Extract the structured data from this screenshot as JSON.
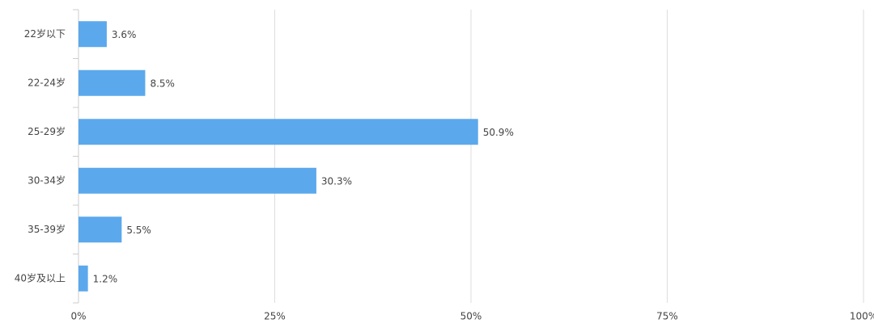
{
  "chart_data": {
    "type": "hbar",
    "categories": [
      "22岁以下",
      "22-24岁",
      "25-29岁",
      "30-34岁",
      "35-39岁",
      "40岁及以上"
    ],
    "values": [
      3.6,
      8.5,
      50.9,
      30.3,
      5.5,
      1.2
    ],
    "value_labels": [
      "3.6%",
      "8.5%",
      "50.9%",
      "30.3%",
      "5.5%",
      "1.2%"
    ],
    "color": "#5ba8ec",
    "xlim": [
      0,
      100
    ],
    "xticks": [
      {
        "value": 0,
        "label": "0%"
      },
      {
        "value": 25,
        "label": "25%"
      },
      {
        "value": 50,
        "label": "50%"
      },
      {
        "value": 75,
        "label": "75%"
      },
      {
        "value": 100,
        "label": "100%"
      }
    ],
    "grid": true
  }
}
